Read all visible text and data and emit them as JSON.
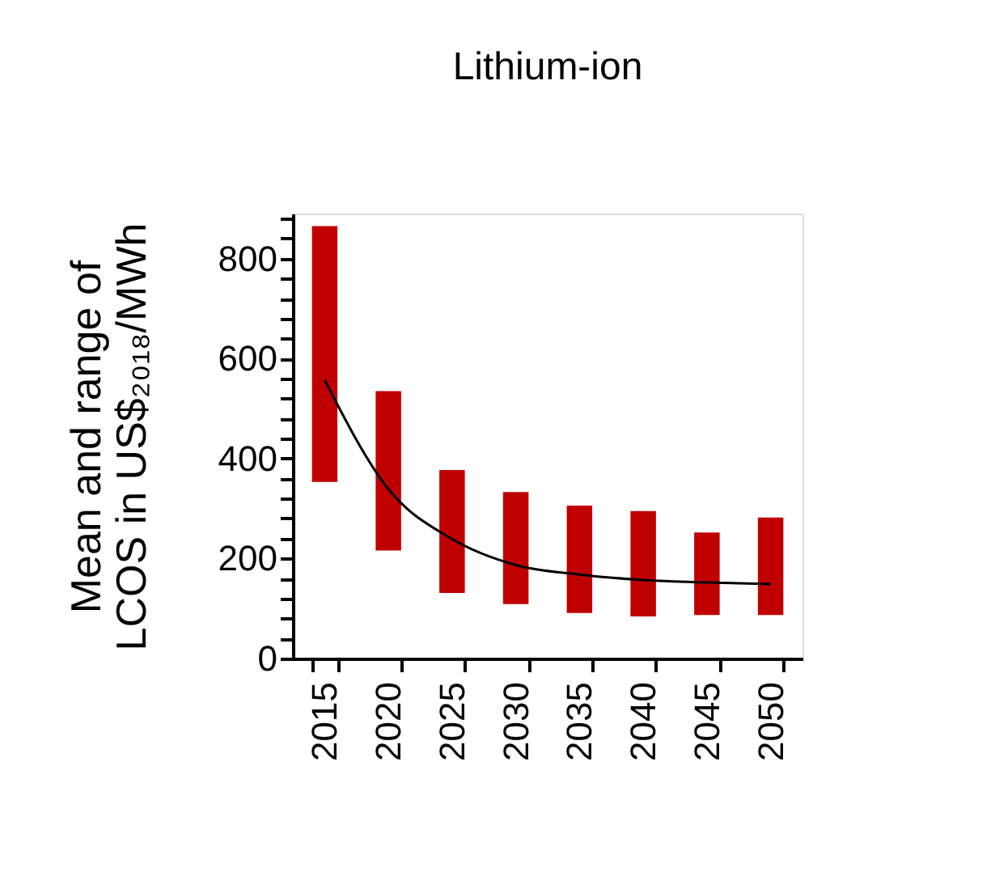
{
  "chart_data": {
    "type": "bar",
    "title": "Lithium-ion",
    "ylabel": "Mean and range of\nLCOS in US$₂₀₁₈/MWh",
    "categories": [
      "2015",
      "2020",
      "2025",
      "2030",
      "2035",
      "2040",
      "2045",
      "2050"
    ],
    "series": [
      {
        "color": "#c00000",
        "base": [
          353,
          216,
          131,
          109,
          91,
          84,
          87,
          87
        ],
        "values": [
          512,
          319,
          246,
          224,
          215,
          211,
          165,
          195
        ]
      },
      {
        "type": "line",
        "color": "#000000",
        "values": [
          557,
          339,
          239,
          187,
          168,
          157,
          152,
          149
        ]
      }
    ],
    "ylim": [
      0,
      890
    ],
    "yticks": [
      0,
      {
        "value": 40,
        "label": null
      },
      {
        "value": 80,
        "label": null
      },
      {
        "value": 120,
        "label": null
      },
      {
        "value": 160,
        "label": null
      },
      200,
      {
        "value": 240,
        "label": null
      },
      {
        "value": 280,
        "label": null
      },
      {
        "value": 320,
        "label": null
      },
      {
        "value": 360,
        "label": null
      },
      400,
      {
        "value": 440,
        "label": null
      },
      {
        "value": 480,
        "label": null
      },
      {
        "value": 520,
        "label": null
      },
      {
        "value": 560,
        "label": null
      },
      600,
      {
        "value": 640,
        "label": null
      },
      {
        "value": 680,
        "label": null
      },
      {
        "value": 720,
        "label": null
      },
      {
        "value": 760,
        "label": null
      },
      800,
      {
        "value": 840,
        "label": null
      },
      {
        "value": 880,
        "label": null
      }
    ],
    "grid": false
  }
}
